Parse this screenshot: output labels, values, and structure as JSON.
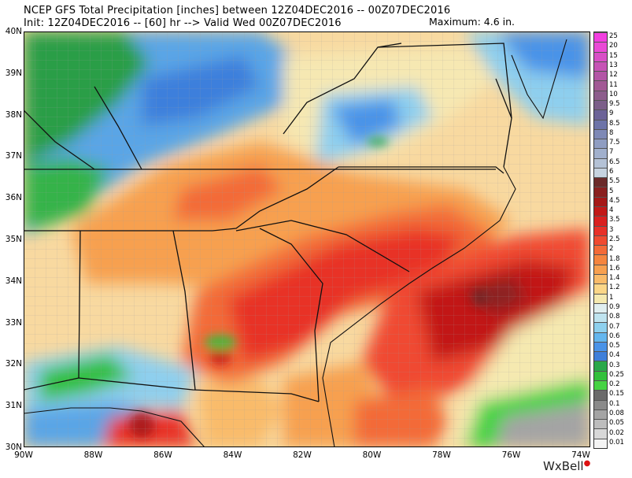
{
  "header": {
    "line1": "NCEP GFS Total Precipitation [inches] between 12Z04DEC2016 -- 00Z07DEC2016",
    "line2": "Init: 12Z04DEC2016 -- [60] hr --> Valid Wed 00Z07DEC2016",
    "maximum": "Maximum: 4.6 in."
  },
  "lat_labels": [
    "40N",
    "39N",
    "38N",
    "37N",
    "36N",
    "35N",
    "34N",
    "33N",
    "32N",
    "31N",
    "30N"
  ],
  "lon_labels": [
    "90W",
    "88W",
    "86W",
    "84W",
    "82W",
    "80W",
    "78W",
    "76W",
    "74W"
  ],
  "colorbar": {
    "labels": [
      "25",
      "20",
      "15",
      "13",
      "12",
      "11",
      "10",
      "9.5",
      "9",
      "8.5",
      "8",
      "7.5",
      "7",
      "6.5",
      "6",
      "5.5",
      "5",
      "4.5",
      "4",
      "3.5",
      "3",
      "2.5",
      "2",
      "1.8",
      "1.6",
      "1.4",
      "1.2",
      "1",
      "0.9",
      "0.8",
      "0.7",
      "0.6",
      "0.5",
      "0.4",
      "0.3",
      "0.25",
      "0.2",
      "0.15",
      "0.1",
      "0.08",
      "0.05",
      "0.02",
      "0.01"
    ],
    "colors": [
      "#f23ee0",
      "#ea4ad6",
      "#d84fc6",
      "#c653b5",
      "#b356a6",
      "#a25995",
      "#8d5d8c",
      "#7c5f89",
      "#6c6398",
      "#6d74a8",
      "#7e89b6",
      "#8f9dc2",
      "#a1b0cd",
      "#b4c2d6",
      "#c6d3e0",
      "#6b2a2a",
      "#8a2020",
      "#a51818",
      "#c21818",
      "#d92020",
      "#e83028",
      "#f04a30",
      "#f36a38",
      "#f5853f",
      "#f7a050",
      "#f9bb6a",
      "#fbd688",
      "#f5e9b0",
      "#e0eef0",
      "#bfe3ef",
      "#8ed0ee",
      "#64b6ee",
      "#4a93e8",
      "#3f7fda",
      "#2aa84a",
      "#33c03c",
      "#46d344",
      "#6b6b6b",
      "#8a8a8a",
      "#a4a4a4",
      "#bdbdbd",
      "#d8d8d8",
      "#f4f4f4"
    ]
  },
  "logo": "WxBell"
}
